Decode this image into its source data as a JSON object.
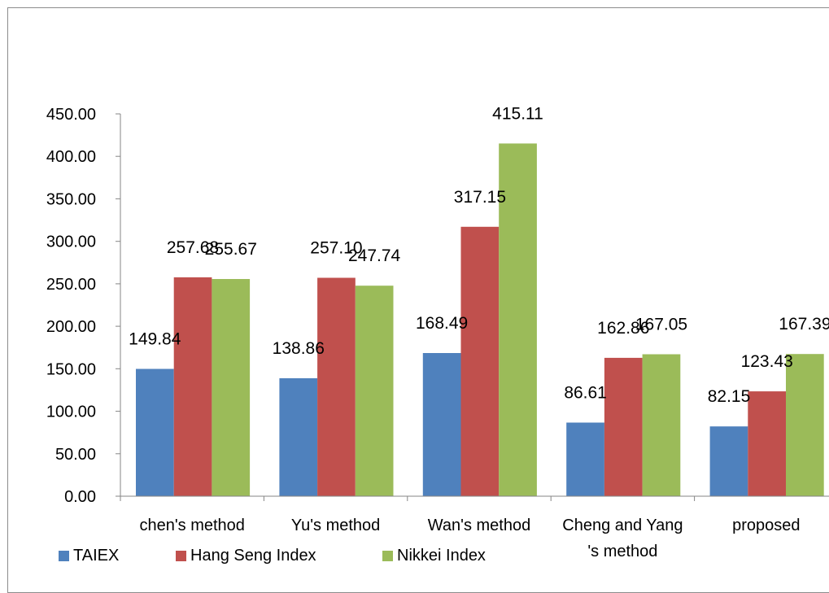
{
  "chart_data": {
    "type": "bar",
    "categories": [
      [
        "chen's method"
      ],
      [
        "Yu's method"
      ],
      [
        "Wan's method"
      ],
      [
        "Cheng and Yang",
        "'s method"
      ],
      [
        "proposed"
      ]
    ],
    "series": [
      {
        "name": "TAIEX",
        "color": "#4f81bd",
        "values": [
          149.84,
          138.86,
          168.49,
          86.61,
          82.15
        ]
      },
      {
        "name": "Hang Seng Index",
        "color": "#c0504d",
        "values": [
          257.68,
          257.1,
          317.15,
          162.86,
          123.43
        ]
      },
      {
        "name": "Nikkei Index",
        "color": "#9bbb59",
        "values": [
          255.67,
          247.74,
          415.11,
          167.05,
          167.39
        ]
      }
    ],
    "yticks": [
      "0.00",
      "50.00",
      "100.00",
      "150.00",
      "200.00",
      "250.00",
      "300.00",
      "350.00",
      "400.00",
      "450.00"
    ],
    "ylim": [
      0,
      450
    ],
    "grid": false,
    "legend_position": "bottom-left"
  }
}
